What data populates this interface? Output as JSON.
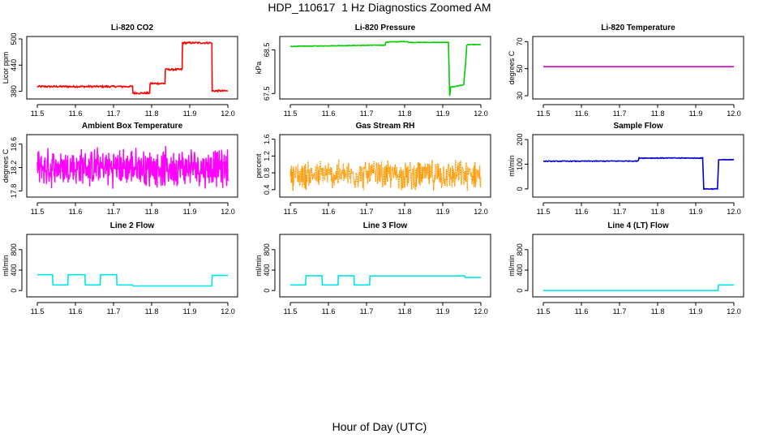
{
  "figure": {
    "title": "HDP_110617  1 Hz Diagnostics Zoomed AM",
    "xlabel": "Hour of Day (UTC)"
  },
  "chart_data": [
    {
      "type": "line",
      "title": "Li-820 CO2",
      "ylabel": "Licor ppm",
      "color": "#ff0000",
      "xlim": [
        11.5,
        12.0
      ],
      "ylim": [
        370,
        500
      ],
      "xticks": [
        "11.5",
        "11.6",
        "11.7",
        "11.8",
        "11.9",
        "12.0"
      ],
      "yticks": [
        "380",
        "440",
        "500"
      ],
      "ytick_values": [
        380,
        440,
        500
      ],
      "series": [
        {
          "x": [
            11.5,
            11.75,
            11.751,
            11.795,
            11.796,
            11.835,
            11.836,
            11.88,
            11.881,
            11.958,
            11.959,
            12.0
          ],
          "y": [
            391,
            391,
            376,
            376,
            398,
            398,
            430,
            430,
            491,
            491,
            381,
            381
          ],
          "noise": 2
        }
      ]
    },
    {
      "type": "line",
      "title": "Li-820 Pressure",
      "ylabel": "kPa",
      "color": "#00cc00",
      "xlim": [
        11.5,
        12.0
      ],
      "ylim": [
        67.45,
        68.75
      ],
      "xticks": [
        "11.5",
        "11.6",
        "11.7",
        "11.8",
        "11.9",
        "12.0"
      ],
      "yticks": [
        "67.5",
        "68.5"
      ],
      "ytick_values": [
        67.5,
        68.5
      ],
      "series": [
        {
          "x": [
            11.5,
            11.749,
            11.751,
            11.808,
            11.81,
            11.915,
            11.918,
            11.921,
            11.925,
            11.955,
            11.96,
            11.963,
            11.967,
            12.0
          ],
          "y": [
            68.58,
            68.61,
            68.68,
            68.69,
            68.67,
            68.67,
            67.45,
            67.65,
            67.65,
            67.7,
            68.2,
            68.6,
            68.62,
            68.62
          ],
          "noise": 0.006
        }
      ]
    },
    {
      "type": "line",
      "title": "Li-820 Temperature",
      "ylabel": "degrees C",
      "color": "#cc00cc",
      "xlim": [
        11.5,
        12.0
      ],
      "ylim": [
        30,
        72
      ],
      "xticks": [
        "11.5",
        "11.6",
        "11.7",
        "11.8",
        "11.9",
        "12.0"
      ],
      "yticks": [
        "30",
        "50",
        "70"
      ],
      "ytick_values": [
        30,
        50,
        70
      ],
      "series": [
        {
          "x": [
            11.5,
            12.0
          ],
          "y": [
            51.5,
            51.5
          ],
          "noise": 0
        }
      ]
    },
    {
      "type": "line",
      "title": "Ambient Box Temperature",
      "ylabel": "degrees C",
      "color": "#ff00ff",
      "xlim": [
        11.5,
        12.0
      ],
      "ylim": [
        17.75,
        18.72
      ],
      "xticks": [
        "11.5",
        "11.6",
        "11.7",
        "11.8",
        "11.9",
        "12.0"
      ],
      "yticks": [
        "17.8",
        "18.2",
        "18.6"
      ],
      "ytick_values": [
        17.8,
        18.2,
        18.6
      ],
      "series": [
        {
          "x": [
            11.5,
            12.0
          ],
          "y": [
            18.2,
            18.2
          ],
          "noise": 0.38,
          "jagged": true
        }
      ]
    },
    {
      "type": "line",
      "title": "Gas Stream RH",
      "ylabel": "percent",
      "color": "#ff9900",
      "xlim": [
        11.5,
        12.0
      ],
      "ylim": [
        0.3,
        1.65
      ],
      "xticks": [
        "11.5",
        "11.6",
        "11.7",
        "11.8",
        "11.9",
        "12.0"
      ],
      "yticks": [
        "0.4",
        "0.8",
        "1.2",
        "1.6"
      ],
      "ytick_values": [
        0.4,
        0.8,
        1.2,
        1.6
      ],
      "series": [
        {
          "x": [
            11.5,
            12.0
          ],
          "y": [
            0.75,
            0.75
          ],
          "noise": 0.4,
          "jagged": true
        }
      ]
    },
    {
      "type": "line",
      "title": "Sample Flow",
      "ylabel": "ml/min",
      "color": "#0000cc",
      "xlim": [
        11.5,
        12.0
      ],
      "ylim": [
        -20,
        210
      ],
      "xticks": [
        "11.5",
        "11.6",
        "11.7",
        "11.8",
        "11.9",
        "12.0"
      ],
      "yticks": [
        "0",
        "100",
        "200"
      ],
      "ytick_values": [
        0,
        100,
        200
      ],
      "series": [
        {
          "x": [
            11.5,
            11.749,
            11.751,
            11.918,
            11.921,
            11.957,
            11.96,
            12.0
          ],
          "y": [
            112,
            113,
            125,
            125,
            0,
            0,
            118,
            118
          ],
          "noise": 1.5
        }
      ]
    },
    {
      "type": "line",
      "title": "Line 2 Flow",
      "ylabel": "ml/min",
      "color": "#00e5e5",
      "xlim": [
        11.5,
        12.0
      ],
      "ylim": [
        -60,
        1050
      ],
      "xticks": [
        "11.5",
        "11.6",
        "11.7",
        "11.8",
        "11.9",
        "12.0"
      ],
      "yticks": [
        "0",
        "400",
        "800"
      ],
      "ytick_values": [
        0,
        400,
        800
      ],
      "series": [
        {
          "x": [
            11.5,
            11.54,
            11.541,
            11.58,
            11.581,
            11.625,
            11.626,
            11.665,
            11.666,
            11.708,
            11.709,
            11.75,
            11.751,
            11.958,
            11.959,
            12.0
          ],
          "y": [
            310,
            310,
            110,
            110,
            310,
            310,
            110,
            110,
            310,
            310,
            110,
            110,
            90,
            90,
            295,
            295
          ],
          "noise": 0
        }
      ]
    },
    {
      "type": "line",
      "title": "Line 3 Flow",
      "ylabel": "ml/min",
      "color": "#00e5e5",
      "xlim": [
        11.5,
        12.0
      ],
      "ylim": [
        -60,
        1050
      ],
      "xticks": [
        "11.5",
        "11.6",
        "11.7",
        "11.8",
        "11.9",
        "12.0"
      ],
      "yticks": [
        "0",
        "400",
        "800"
      ],
      "ytick_values": [
        0,
        400,
        800
      ],
      "series": [
        {
          "x": [
            11.5,
            11.54,
            11.541,
            11.583,
            11.584,
            11.625,
            11.626,
            11.667,
            11.668,
            11.708,
            11.709,
            11.958,
            11.959,
            12.0
          ],
          "y": [
            110,
            110,
            290,
            290,
            110,
            110,
            290,
            290,
            110,
            110,
            285,
            285,
            255,
            255
          ],
          "noise": 0
        }
      ]
    },
    {
      "type": "line",
      "title": "Line 4 (LT) Flow",
      "ylabel": "ml/min",
      "color": "#00e5e5",
      "xlim": [
        11.5,
        12.0
      ],
      "ylim": [
        -60,
        1050
      ],
      "xticks": [
        "11.5",
        "11.6",
        "11.7",
        "11.8",
        "11.9",
        "12.0"
      ],
      "yticks": [
        "0",
        "400",
        "800"
      ],
      "ytick_values": [
        0,
        400,
        800
      ],
      "series": [
        {
          "x": [
            11.5,
            11.918,
            11.921,
            11.958,
            11.96,
            12.0
          ],
          "y": [
            0,
            0,
            0,
            0,
            110,
            110
          ],
          "noise": 0
        }
      ]
    }
  ]
}
